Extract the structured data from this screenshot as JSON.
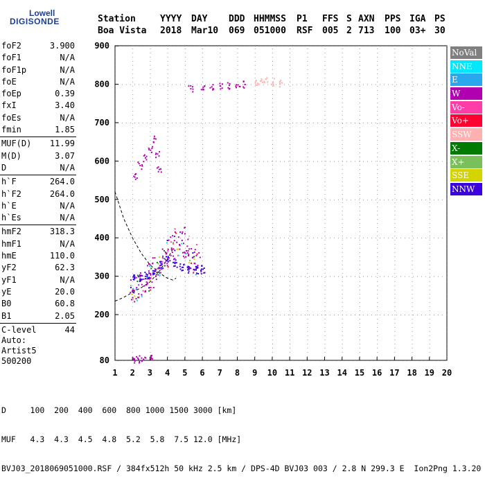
{
  "logo": {
    "line1": "Lowell",
    "line2": "DIGISONDE"
  },
  "header": {
    "labels": [
      "Station",
      "YYYY",
      "DAY",
      "DDD",
      "HHMMSS",
      "P1",
      "FFS",
      "S",
      "AXN",
      "PPS",
      "IGA",
      "PS"
    ],
    "values": [
      "Boa Vista",
      "2018",
      "Mar10",
      "069",
      "051000",
      "RSF",
      "005",
      "2",
      "713",
      "100",
      "03+",
      "30"
    ]
  },
  "params": {
    "group1": [
      {
        "name": "foF2",
        "value": "3.900"
      },
      {
        "name": "foF1",
        "value": "N/A"
      },
      {
        "name": "foF1p",
        "value": "N/A"
      },
      {
        "name": "foE",
        "value": "N/A"
      },
      {
        "name": "foEp",
        "value": "0.39"
      },
      {
        "name": "fxI",
        "value": "3.40"
      },
      {
        "name": "foEs",
        "value": "N/A"
      },
      {
        "name": "fmin",
        "value": "1.85"
      }
    ],
    "group2": [
      {
        "name": "MUF(D)",
        "value": "11.99"
      },
      {
        "name": "M(D)",
        "value": "3.07"
      },
      {
        "name": "D",
        "value": "N/A"
      }
    ],
    "group3": [
      {
        "name": "h`F",
        "value": "264.0"
      },
      {
        "name": "h`F2",
        "value": "264.0"
      },
      {
        "name": "h`E",
        "value": "N/A"
      },
      {
        "name": "h`Es",
        "value": "N/A"
      }
    ],
    "group4": [
      {
        "name": "hmF2",
        "value": "318.3"
      },
      {
        "name": "hmF1",
        "value": "N/A"
      },
      {
        "name": "hmE",
        "value": "110.0"
      },
      {
        "name": "yF2",
        "value": "62.3"
      },
      {
        "name": "yF1",
        "value": "N/A"
      },
      {
        "name": "yE",
        "value": "20.0"
      },
      {
        "name": "B0",
        "value": "60.8"
      },
      {
        "name": "B1",
        "value": "2.05"
      }
    ],
    "group5": [
      {
        "name": "C-level",
        "value": "44"
      }
    ]
  },
  "auto": {
    "line1": "Auto:",
    "line2": "Artist5",
    "line3": "500200"
  },
  "legend": [
    {
      "label": "NoVal",
      "color": "#808080"
    },
    {
      "label": "NNE",
      "color": "#00e8ff"
    },
    {
      "label": "E",
      "color": "#2aa8ee"
    },
    {
      "label": "W",
      "color": "#b000b0"
    },
    {
      "label": "Vo-",
      "color": "#ff3ca8"
    },
    {
      "label": "Vo+",
      "color": "#ff0033"
    },
    {
      "label": "SSW",
      "color": "#ffb0b0"
    },
    {
      "label": "X-",
      "color": "#007a00"
    },
    {
      "label": "X+",
      "color": "#7ac05a"
    },
    {
      "label": "SSE",
      "color": "#d4d400"
    },
    {
      "label": "NNW",
      "color": "#3a00e0"
    }
  ],
  "footer": {
    "line1": "D     100  200  400  600  800 1000 1500 3000 [km]",
    "line2": "MUF   4.3  4.3  4.5  4.8  5.2  5.8  7.5 12.0 [MHz]",
    "line3": "BVJ03_2018069051000.RSF / 384fx512h 50 kHz 2.5 km / DPS-4D BVJ03 003 / 2.8 N 299.3 E  Ion2Png 1.3.20"
  },
  "chart_data": {
    "type": "scatter",
    "xlim": [
      1,
      20
    ],
    "ylim": [
      80,
      900
    ],
    "x_ticks": [
      1,
      2,
      3,
      4,
      5,
      6,
      7,
      8,
      9,
      10,
      11,
      12,
      13,
      14,
      15,
      16,
      17,
      18,
      19,
      20
    ],
    "y_ticks": [
      80,
      200,
      300,
      400,
      500,
      600,
      700,
      800,
      900
    ],
    "y_tick_labels": [
      "80",
      "200",
      "300",
      "400",
      "500",
      "600",
      "700",
      "800",
      "900"
    ],
    "grid": true,
    "clusters": [
      {
        "name": "F-trace main",
        "color": "#b000b0",
        "x_range": [
          1.9,
          5.9
        ],
        "y_range": [
          270,
          460
        ],
        "points": [
          [
            2.0,
            265
          ],
          [
            2.2,
            272
          ],
          [
            2.5,
            280
          ],
          [
            2.8,
            295
          ],
          [
            3.0,
            305
          ],
          [
            3.3,
            320
          ],
          [
            3.6,
            340
          ],
          [
            3.9,
            360
          ],
          [
            4.2,
            375
          ],
          [
            4.5,
            390
          ],
          [
            4.8,
            395
          ],
          [
            5.1,
            380
          ],
          [
            5.4,
            350
          ],
          [
            5.7,
            330
          ]
        ]
      },
      {
        "name": "F-trace extension",
        "color": "#3a00e0",
        "points": [
          [
            2.0,
            300
          ],
          [
            2.4,
            295
          ],
          [
            2.8,
            305
          ],
          [
            3.2,
            315
          ],
          [
            3.6,
            330
          ],
          [
            4.0,
            345
          ],
          [
            4.4,
            335
          ],
          [
            4.8,
            325
          ],
          [
            5.2,
            320
          ],
          [
            5.6,
            318
          ],
          [
            6.0,
            320
          ]
        ]
      },
      {
        "name": "upper echoes",
        "color": "#b000b0",
        "points": [
          [
            2.1,
            560
          ],
          [
            2.4,
            590
          ],
          [
            2.7,
            610
          ],
          [
            3.0,
            630
          ],
          [
            3.2,
            660
          ],
          [
            3.4,
            620
          ],
          [
            3.5,
            580
          ]
        ]
      },
      {
        "name": "high echoes 800km",
        "color": "#b000b0",
        "points": [
          [
            5.3,
            790
          ],
          [
            6.0,
            793
          ],
          [
            6.5,
            795
          ],
          [
            7.0,
            797
          ],
          [
            7.5,
            799
          ],
          [
            8.0,
            800
          ],
          [
            8.4,
            801
          ]
        ]
      },
      {
        "name": "high echoes SSW",
        "color": "#ffb0b0",
        "points": [
          [
            9.0,
            805
          ],
          [
            9.3,
            810
          ],
          [
            9.6,
            815
          ],
          [
            10.0,
            808
          ],
          [
            10.4,
            803
          ]
        ]
      },
      {
        "name": "low echoes",
        "color": "#b000b0",
        "points": [
          [
            2.0,
            85
          ],
          [
            2.3,
            85
          ],
          [
            2.6,
            85
          ],
          [
            3.0,
            85
          ]
        ]
      }
    ],
    "profile_curve": {
      "name": "dashed",
      "points": [
        [
          1.0,
          520
        ],
        [
          1.5,
          450
        ],
        [
          2.0,
          400
        ],
        [
          2.5,
          360
        ],
        [
          3.0,
          330
        ],
        [
          3.5,
          310
        ],
        [
          4.0,
          295
        ],
        [
          4.3,
          290
        ],
        [
          4.5,
          295
        ]
      ]
    },
    "lower_curve": {
      "name": "dashed-lower",
      "points": [
        [
          1.0,
          235
        ],
        [
          1.5,
          245
        ],
        [
          2.0,
          258
        ],
        [
          2.5,
          270
        ],
        [
          3.0,
          285
        ],
        [
          3.5,
          310
        ],
        [
          4.0,
          345
        ],
        [
          4.3,
          370
        ]
      ]
    }
  }
}
